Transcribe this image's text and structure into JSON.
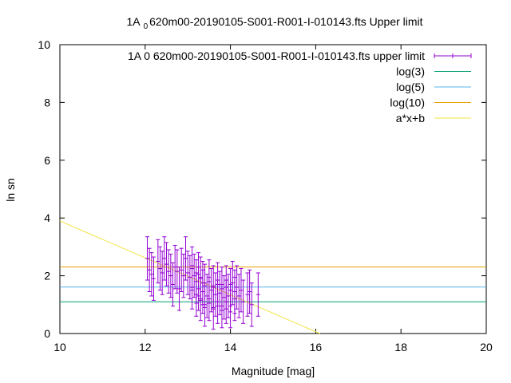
{
  "chart_data": {
    "type": "scatter",
    "title_main": "1A",
    "title_sub": "0",
    "title_rest": "620m00-20190105-S001-R001-I-010143.fts Upper limit",
    "xlabel": "Magnitude [mag]",
    "ylabel": "ln sn",
    "xlim": [
      10,
      20
    ],
    "ylim": [
      0,
      10
    ],
    "xticks": [
      "10",
      "12",
      "14",
      "16",
      "18",
      "20"
    ],
    "yticks": [
      "0",
      "2",
      "4",
      "6",
      "8",
      "10"
    ],
    "grid": false,
    "legend_position": "top-right",
    "series": [
      {
        "name": "1A 0 620m00-20190105-S001-R001-I-010143.fts upper limit",
        "kind": "errorbars",
        "color": "#9400d3",
        "x": [
          12.05,
          12.1,
          12.15,
          12.2,
          12.3,
          12.35,
          12.4,
          12.45,
          12.5,
          12.55,
          12.6,
          12.65,
          12.7,
          12.75,
          12.8,
          12.85,
          12.9,
          12.95,
          13.0,
          13.05,
          13.1,
          13.1,
          13.15,
          13.2,
          13.2,
          13.25,
          13.25,
          13.3,
          13.3,
          13.35,
          13.35,
          13.4,
          13.4,
          13.45,
          13.5,
          13.5,
          13.55,
          13.6,
          13.6,
          13.65,
          13.7,
          13.7,
          13.75,
          13.8,
          13.8,
          13.85,
          13.9,
          13.9,
          13.95,
          14.0,
          14.0,
          14.05,
          14.1,
          14.1,
          14.15,
          14.2,
          14.25,
          14.3,
          14.4,
          14.45,
          14.5,
          14.65
        ],
        "y": [
          2.6,
          2.2,
          2.05,
          1.9,
          2.5,
          2.25,
          2.1,
          2.6,
          2.4,
          2.15,
          2.0,
          1.7,
          2.3,
          2.15,
          1.55,
          2.2,
          2.0,
          2.6,
          2.1,
          1.95,
          2.25,
          1.6,
          2.0,
          1.8,
          1.35,
          2.05,
          1.55,
          1.9,
          1.2,
          1.75,
          1.45,
          1.65,
          1.0,
          1.3,
          1.8,
          1.2,
          1.5,
          1.6,
          0.9,
          1.35,
          1.7,
          1.1,
          1.4,
          1.55,
          0.95,
          1.25,
          1.6,
          1.1,
          1.3,
          1.5,
          0.95,
          1.75,
          1.2,
          1.45,
          1.6,
          1.3,
          1.5,
          1.1,
          1.35,
          1.45,
          1.0,
          1.35
        ],
        "err": 0.75
      },
      {
        "name": "log(3)",
        "kind": "hline",
        "y": 1.0986,
        "color": "#009e73"
      },
      {
        "name": "log(5)",
        "kind": "hline",
        "y": 1.6094,
        "color": "#56b4e9"
      },
      {
        "name": "log(10)",
        "kind": "hline",
        "y": 2.3026,
        "color": "#e69f00"
      },
      {
        "name": "a*x+b",
        "kind": "line",
        "x": [
          10,
          16.1
        ],
        "y": [
          3.9,
          0
        ],
        "color": "#f0e442"
      }
    ]
  }
}
